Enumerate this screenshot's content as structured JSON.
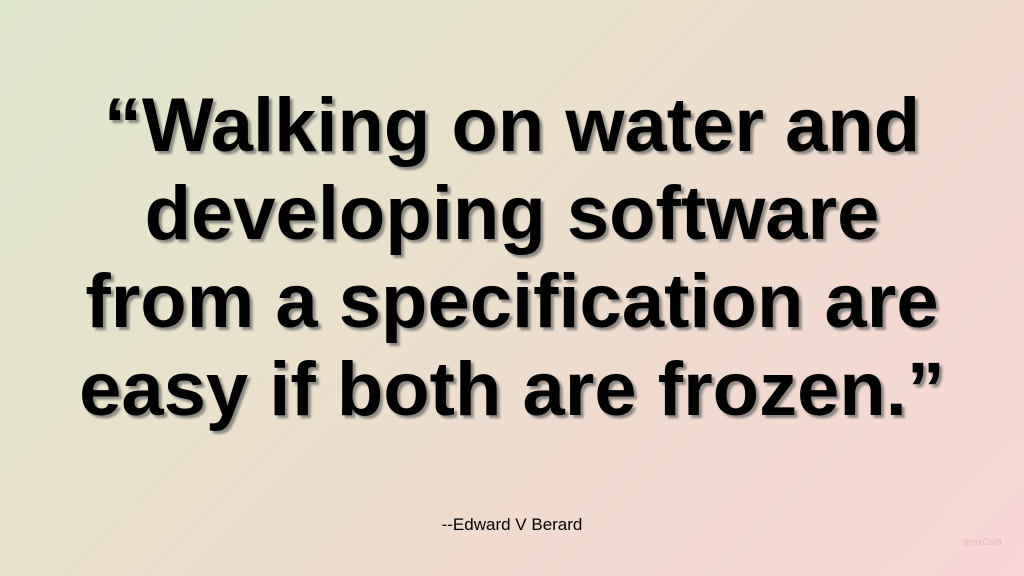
{
  "slide": {
    "quote_lines": [
      "“Walking on water and",
      "developing software",
      "from a specification are",
      "easy if both are frozen.”"
    ],
    "attribution": "--Edward V Berard",
    "watermark": "@nixCraft"
  },
  "colors": {
    "text": "#000000",
    "background_start": "#dfe7cd",
    "background_end": "#fad6d6",
    "watermark": "#e9b8b8"
  }
}
